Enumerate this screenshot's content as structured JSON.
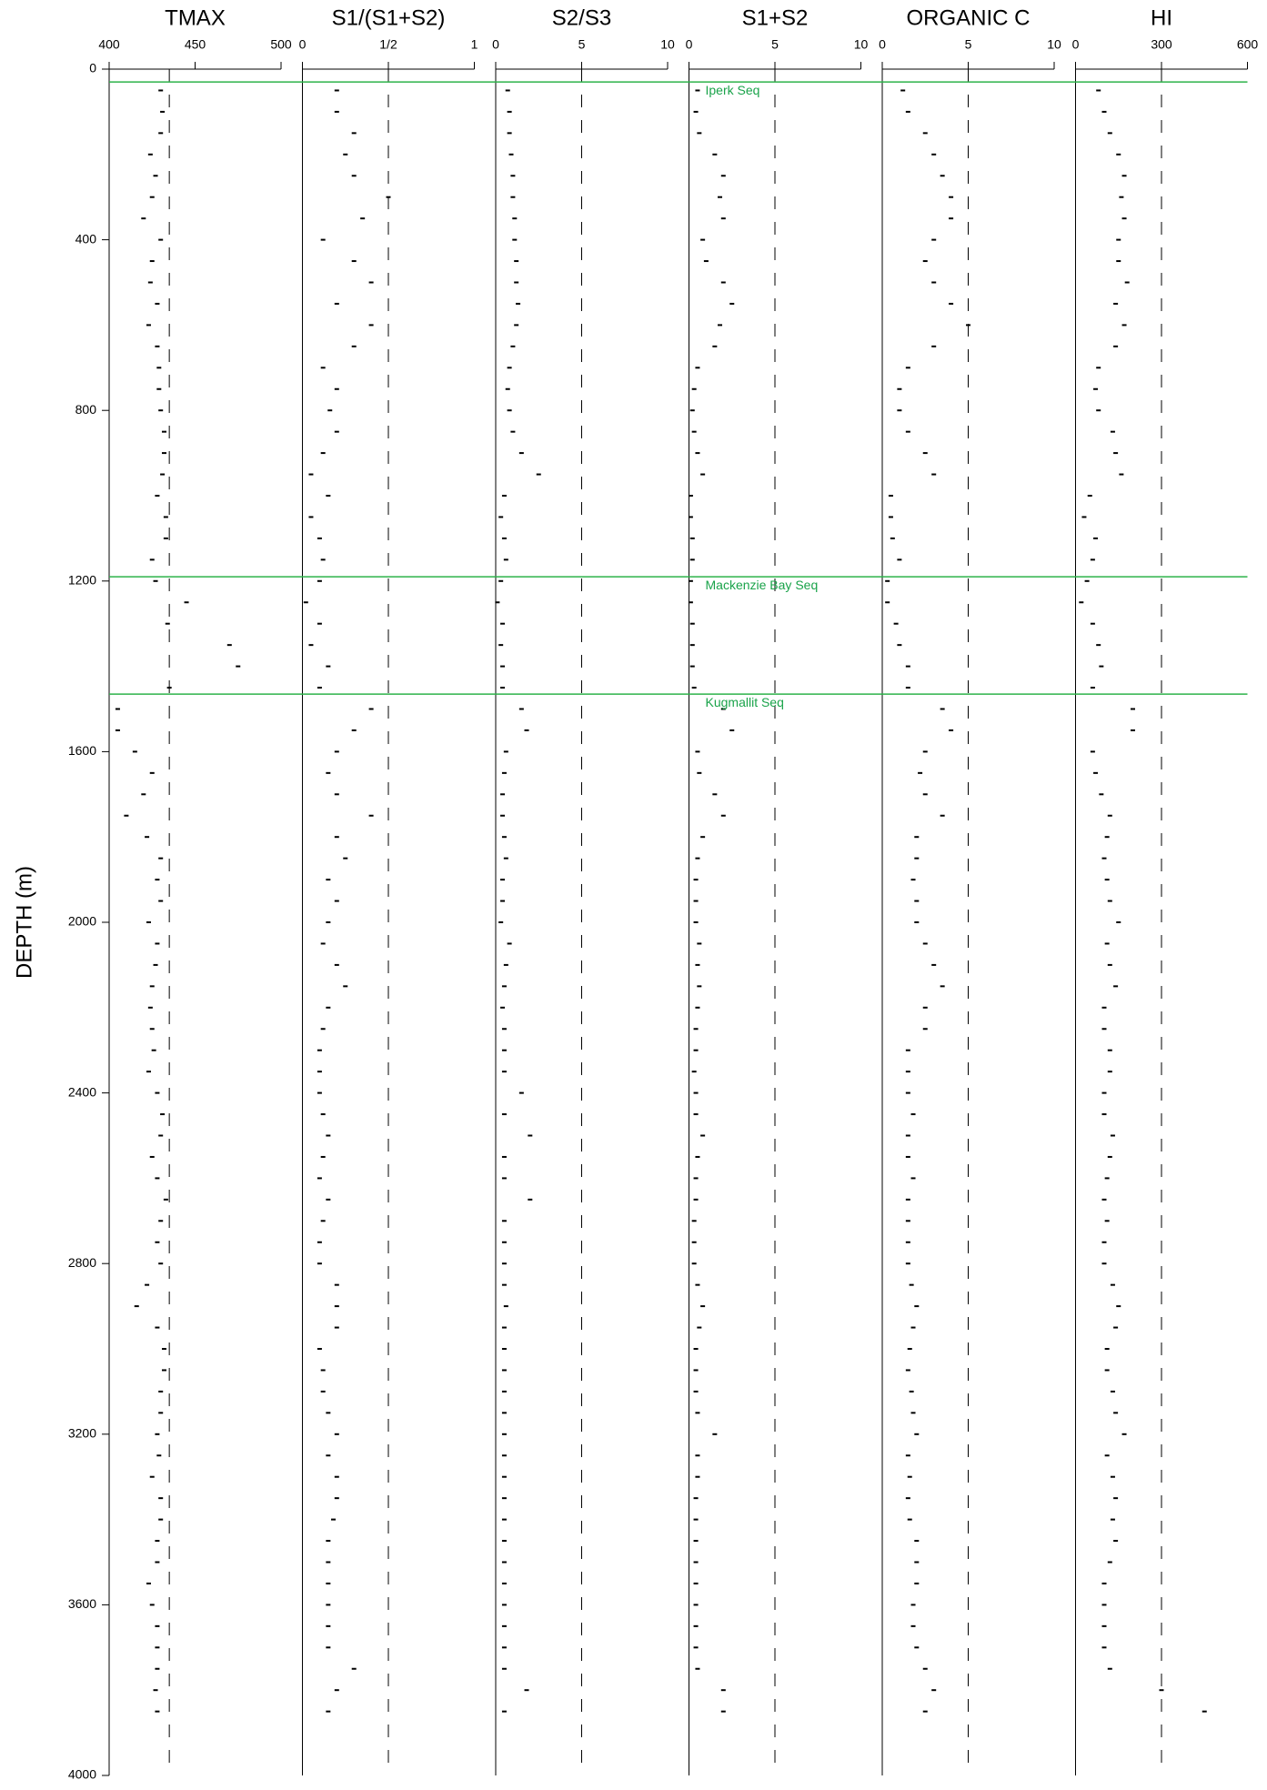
{
  "chart_data": {
    "type": "scatter",
    "y_label": "DEPTH (m)",
    "ylim": [
      0,
      4000
    ],
    "yticks": [
      0,
      400,
      800,
      1200,
      1600,
      2000,
      2400,
      2800,
      3200,
      3600,
      4000
    ],
    "depth": [
      50,
      100,
      150,
      200,
      250,
      300,
      350,
      400,
      450,
      500,
      550,
      600,
      650,
      700,
      750,
      800,
      850,
      900,
      950,
      1000,
      1050,
      1100,
      1150,
      1200,
      1250,
      1300,
      1350,
      1400,
      1450,
      1500,
      1550,
      1600,
      1650,
      1700,
      1750,
      1800,
      1850,
      1900,
      1950,
      2000,
      2050,
      2100,
      2150,
      2200,
      2250,
      2300,
      2350,
      2400,
      2450,
      2500,
      2550,
      2600,
      2650,
      2700,
      2750,
      2800,
      2850,
      2900,
      2950,
      3000,
      3050,
      3100,
      3150,
      3200,
      3250,
      3300,
      3350,
      3400,
      3450,
      3500,
      3550,
      3600,
      3650,
      3700,
      3750,
      3800,
      3850
    ],
    "horizon_color": "#2db34a",
    "horizons": [
      {
        "depth": 30,
        "label": "Iperk Seq"
      },
      {
        "depth": 1190,
        "label": "Mackenzie Bay Seq"
      },
      {
        "depth": 1465,
        "label": "Kugmallit Seq"
      }
    ],
    "panels": [
      {
        "title": "TMAX",
        "xlim": [
          400,
          500
        ],
        "xticks": [
          400,
          450,
          500
        ],
        "reference": 435,
        "values": [
          430,
          431,
          430,
          424,
          427,
          425,
          420,
          430,
          425,
          424,
          428,
          423,
          428,
          429,
          429,
          430,
          432,
          432,
          431,
          428,
          433,
          433,
          425,
          427,
          445,
          434,
          470,
          475,
          435,
          405,
          405,
          415,
          425,
          420,
          410,
          422,
          430,
          428,
          430,
          423,
          428,
          427,
          425,
          424,
          425,
          426,
          423,
          428,
          431,
          430,
          425,
          428,
          433,
          430,
          428,
          430,
          422,
          416,
          428,
          432,
          432,
          430,
          430,
          428,
          429,
          425,
          430,
          430,
          428,
          428,
          423,
          425,
          428,
          428,
          428,
          427,
          428
        ]
      },
      {
        "title": "S1/(S1+S2)",
        "xlim": [
          0,
          1
        ],
        "xticks": [
          0,
          {
            "value": 0.5,
            "label": "1/2"
          },
          1
        ],
        "reference": 0.5,
        "values": [
          0.2,
          0.2,
          0.3,
          0.25,
          0.3,
          0.5,
          0.35,
          0.12,
          0.3,
          0.4,
          0.2,
          0.4,
          0.3,
          0.12,
          0.2,
          0.16,
          0.2,
          0.12,
          0.05,
          0.15,
          0.05,
          0.1,
          0.12,
          0.1,
          0.02,
          0.1,
          0.05,
          0.15,
          0.1,
          0.4,
          0.3,
          0.2,
          0.15,
          0.2,
          0.4,
          0.2,
          0.25,
          0.15,
          0.2,
          0.15,
          0.12,
          0.2,
          0.25,
          0.15,
          0.12,
          0.1,
          0.1,
          0.1,
          0.12,
          0.15,
          0.12,
          0.1,
          0.15,
          0.12,
          0.1,
          0.1,
          0.2,
          0.2,
          0.2,
          0.1,
          0.12,
          0.12,
          0.15,
          0.2,
          0.15,
          0.2,
          0.2,
          0.18,
          0.15,
          0.15,
          0.15,
          0.15,
          0.15,
          0.15,
          0.3,
          0.2,
          0.15
        ]
      },
      {
        "title": "S2/S3",
        "xlim": [
          0,
          10
        ],
        "xticks": [
          0,
          5,
          10
        ],
        "reference": 5,
        "values": [
          0.7,
          0.8,
          0.8,
          0.9,
          1,
          1,
          1.1,
          1.1,
          1.2,
          1.2,
          1.3,
          1.2,
          1,
          0.8,
          0.7,
          0.8,
          1,
          1.5,
          2.5,
          0.5,
          0.3,
          0.5,
          0.6,
          0.3,
          0.1,
          0.4,
          0.3,
          0.4,
          0.4,
          1.5,
          1.8,
          0.6,
          0.5,
          0.4,
          0.4,
          0.5,
          0.6,
          0.4,
          0.4,
          0.3,
          0.8,
          0.6,
          0.5,
          0.4,
          0.5,
          0.5,
          0.5,
          1.5,
          0.5,
          2,
          0.5,
          0.5,
          2,
          0.5,
          0.5,
          0.5,
          0.5,
          0.6,
          0.5,
          0.5,
          0.5,
          0.5,
          0.5,
          0.5,
          0.5,
          0.5,
          0.5,
          0.5,
          0.5,
          0.5,
          0.5,
          0.5,
          0.5,
          0.5,
          0.5,
          1.8,
          0.5
        ]
      },
      {
        "title": "S1+S2",
        "xlim": [
          0,
          10
        ],
        "xticks": [
          0,
          5,
          10
        ],
        "reference": 5,
        "values": [
          0.5,
          0.4,
          0.6,
          1.5,
          2,
          1.8,
          2,
          0.8,
          1,
          2,
          2.5,
          1.8,
          1.5,
          0.5,
          0.3,
          0.2,
          0.3,
          0.5,
          0.8,
          0.1,
          0.1,
          0.2,
          0.2,
          0.1,
          0.1,
          0.2,
          0.2,
          0.2,
          0.3,
          2,
          2.5,
          0.5,
          0.6,
          1.5,
          2,
          0.8,
          0.5,
          0.4,
          0.4,
          0.4,
          0.6,
          0.5,
          0.6,
          0.5,
          0.4,
          0.4,
          0.3,
          0.4,
          0.4,
          0.8,
          0.5,
          0.4,
          0.4,
          0.3,
          0.3,
          0.3,
          0.5,
          0.8,
          0.6,
          0.4,
          0.4,
          0.4,
          0.5,
          1.5,
          0.5,
          0.5,
          0.4,
          0.4,
          0.4,
          0.4,
          0.4,
          0.4,
          0.4,
          0.4,
          0.5,
          2,
          2
        ]
      },
      {
        "title": "ORGANIC C",
        "xlim": [
          0,
          10
        ],
        "xticks": [
          0,
          5,
          10
        ],
        "reference": 5,
        "values": [
          1.2,
          1.5,
          2.5,
          3,
          3.5,
          4,
          4,
          3,
          2.5,
          3,
          4,
          5,
          3,
          1.5,
          1,
          1,
          1.5,
          2.5,
          3,
          0.5,
          0.5,
          0.6,
          1,
          0.3,
          0.3,
          0.8,
          1,
          1.5,
          1.5,
          3.5,
          4,
          2.5,
          2.2,
          2.5,
          3.5,
          2,
          2,
          1.8,
          2,
          2,
          2.5,
          3,
          3.5,
          2.5,
          2.5,
          1.5,
          1.5,
          1.5,
          1.8,
          1.5,
          1.5,
          1.8,
          1.5,
          1.5,
          1.5,
          1.5,
          1.7,
          2,
          1.8,
          1.6,
          1.5,
          1.7,
          1.8,
          2,
          1.5,
          1.6,
          1.5,
          1.6,
          2,
          2,
          2,
          1.8,
          1.8,
          2,
          2.5,
          3,
          2.5
        ]
      },
      {
        "title": "HI",
        "xlim": [
          0,
          600
        ],
        "xticks": [
          0,
          300,
          600
        ],
        "reference": 300,
        "values": [
          80,
          100,
          120,
          150,
          170,
          160,
          170,
          150,
          150,
          180,
          140,
          170,
          140,
          80,
          70,
          80,
          130,
          140,
          160,
          50,
          30,
          70,
          60,
          40,
          20,
          60,
          80,
          90,
          60,
          200,
          200,
          60,
          70,
          90,
          120,
          110,
          100,
          110,
          120,
          150,
          110,
          120,
          140,
          100,
          100,
          120,
          120,
          100,
          100,
          130,
          120,
          110,
          100,
          110,
          100,
          100,
          130,
          150,
          140,
          110,
          110,
          130,
          140,
          170,
          110,
          130,
          140,
          130,
          140,
          120,
          100,
          100,
          100,
          100,
          120,
          300,
          450
        ]
      }
    ]
  }
}
